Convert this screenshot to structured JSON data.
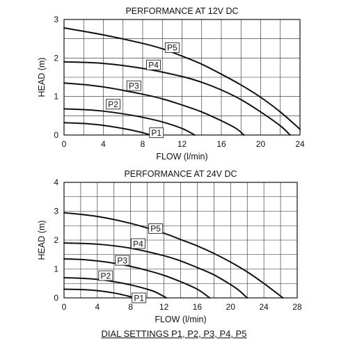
{
  "footer_note": "DIAL SETTINGS P1, P2, P3, P4, P5",
  "chart_data": [
    {
      "type": "line",
      "title": "PERFORMANCE AT 12V DC",
      "xlabel": "FLOW (l/min)",
      "ylabel": "HEAD (m)",
      "xlim": [
        0,
        24
      ],
      "ylim": [
        0,
        3
      ],
      "x_ticks": [
        0,
        4,
        8,
        12,
        16,
        20,
        24
      ],
      "y_ticks": [
        0,
        1,
        2,
        3
      ],
      "x_grid_step": 2,
      "y_grid_step": 0.5,
      "grid": true,
      "series": [
        {
          "name": "P1",
          "x": [
            0,
            2,
            4,
            6,
            7,
            8,
            8.8
          ],
          "y": [
            0.32,
            0.3,
            0.25,
            0.17,
            0.12,
            0.06,
            0
          ]
        },
        {
          "name": "P2",
          "x": [
            0,
            2,
            4,
            6,
            8,
            10,
            12,
            13.3
          ],
          "y": [
            0.68,
            0.66,
            0.62,
            0.55,
            0.46,
            0.34,
            0.17,
            0
          ]
        },
        {
          "name": "P3",
          "x": [
            0,
            2,
            4,
            6,
            8,
            10,
            12,
            14,
            16,
            17.5,
            18.3
          ],
          "y": [
            1.35,
            1.31,
            1.25,
            1.16,
            1.06,
            0.94,
            0.78,
            0.6,
            0.37,
            0.17,
            0
          ]
        },
        {
          "name": "P4",
          "x": [
            0,
            4,
            8,
            12,
            14,
            16,
            18,
            20,
            22,
            23
          ],
          "y": [
            1.9,
            1.86,
            1.73,
            1.52,
            1.37,
            1.17,
            0.92,
            0.6,
            0.24,
            0
          ]
        },
        {
          "name": "P5",
          "x": [
            0,
            4,
            8,
            10,
            12,
            14,
            16,
            18,
            20,
            22,
            24
          ],
          "y": [
            2.78,
            2.6,
            2.38,
            2.24,
            2.05,
            1.84,
            1.58,
            1.3,
            0.98,
            0.6,
            0.15
          ]
        }
      ],
      "label_positions": [
        {
          "series": "P1",
          "x": 9.4,
          "y": 0.06
        },
        {
          "series": "P2",
          "x": 5.0,
          "y": 0.8
        },
        {
          "series": "P3",
          "x": 7.1,
          "y": 1.28
        },
        {
          "series": "P4",
          "x": 9.1,
          "y": 1.82
        },
        {
          "series": "P5",
          "x": 11.0,
          "y": 2.27
        }
      ]
    },
    {
      "type": "line",
      "title": "PERFORMANCE AT 24V DC",
      "xlabel": "FLOW (l/min)",
      "ylabel": "HEAD (m)",
      "xlim": [
        0,
        28
      ],
      "ylim": [
        0,
        4
      ],
      "x_ticks": [
        0,
        4,
        8,
        12,
        16,
        20,
        24,
        28
      ],
      "y_ticks": [
        0,
        1,
        2,
        3,
        4
      ],
      "x_grid_step": 2,
      "y_grid_step": 0.5,
      "grid": true,
      "series": [
        {
          "name": "P1",
          "x": [
            0,
            2,
            4,
            6,
            7,
            8,
            8.6
          ],
          "y": [
            0.3,
            0.29,
            0.25,
            0.17,
            0.11,
            0.04,
            0
          ]
        },
        {
          "name": "P2",
          "x": [
            0,
            2,
            4,
            6,
            8,
            10,
            11,
            12.3
          ],
          "y": [
            0.7,
            0.68,
            0.64,
            0.56,
            0.45,
            0.3,
            0.2,
            0
          ]
        },
        {
          "name": "P3",
          "x": [
            0,
            2,
            4,
            6,
            8,
            10,
            12,
            14,
            16,
            17.5
          ],
          "y": [
            1.35,
            1.33,
            1.28,
            1.2,
            1.09,
            0.95,
            0.78,
            0.56,
            0.3,
            0
          ]
        },
        {
          "name": "P4",
          "x": [
            0,
            4,
            8,
            12,
            14,
            16,
            18,
            20,
            21,
            22
          ],
          "y": [
            1.9,
            1.86,
            1.72,
            1.46,
            1.28,
            1.05,
            0.8,
            0.46,
            0.26,
            0
          ]
        },
        {
          "name": "P5",
          "x": [
            0,
            4,
            8,
            12,
            14,
            16,
            18,
            20,
            22,
            24,
            26.3
          ],
          "y": [
            2.95,
            2.82,
            2.58,
            2.24,
            2.02,
            1.8,
            1.54,
            1.24,
            0.9,
            0.5,
            0
          ]
        }
      ],
      "label_positions": [
        {
          "series": "P1",
          "x": 9.0,
          "y": 0.0
        },
        {
          "series": "P2",
          "x": 5.0,
          "y": 0.77
        },
        {
          "series": "P3",
          "x": 7.0,
          "y": 1.3
        },
        {
          "series": "P4",
          "x": 8.9,
          "y": 1.88
        },
        {
          "series": "P5",
          "x": 11.0,
          "y": 2.4
        }
      ]
    }
  ]
}
